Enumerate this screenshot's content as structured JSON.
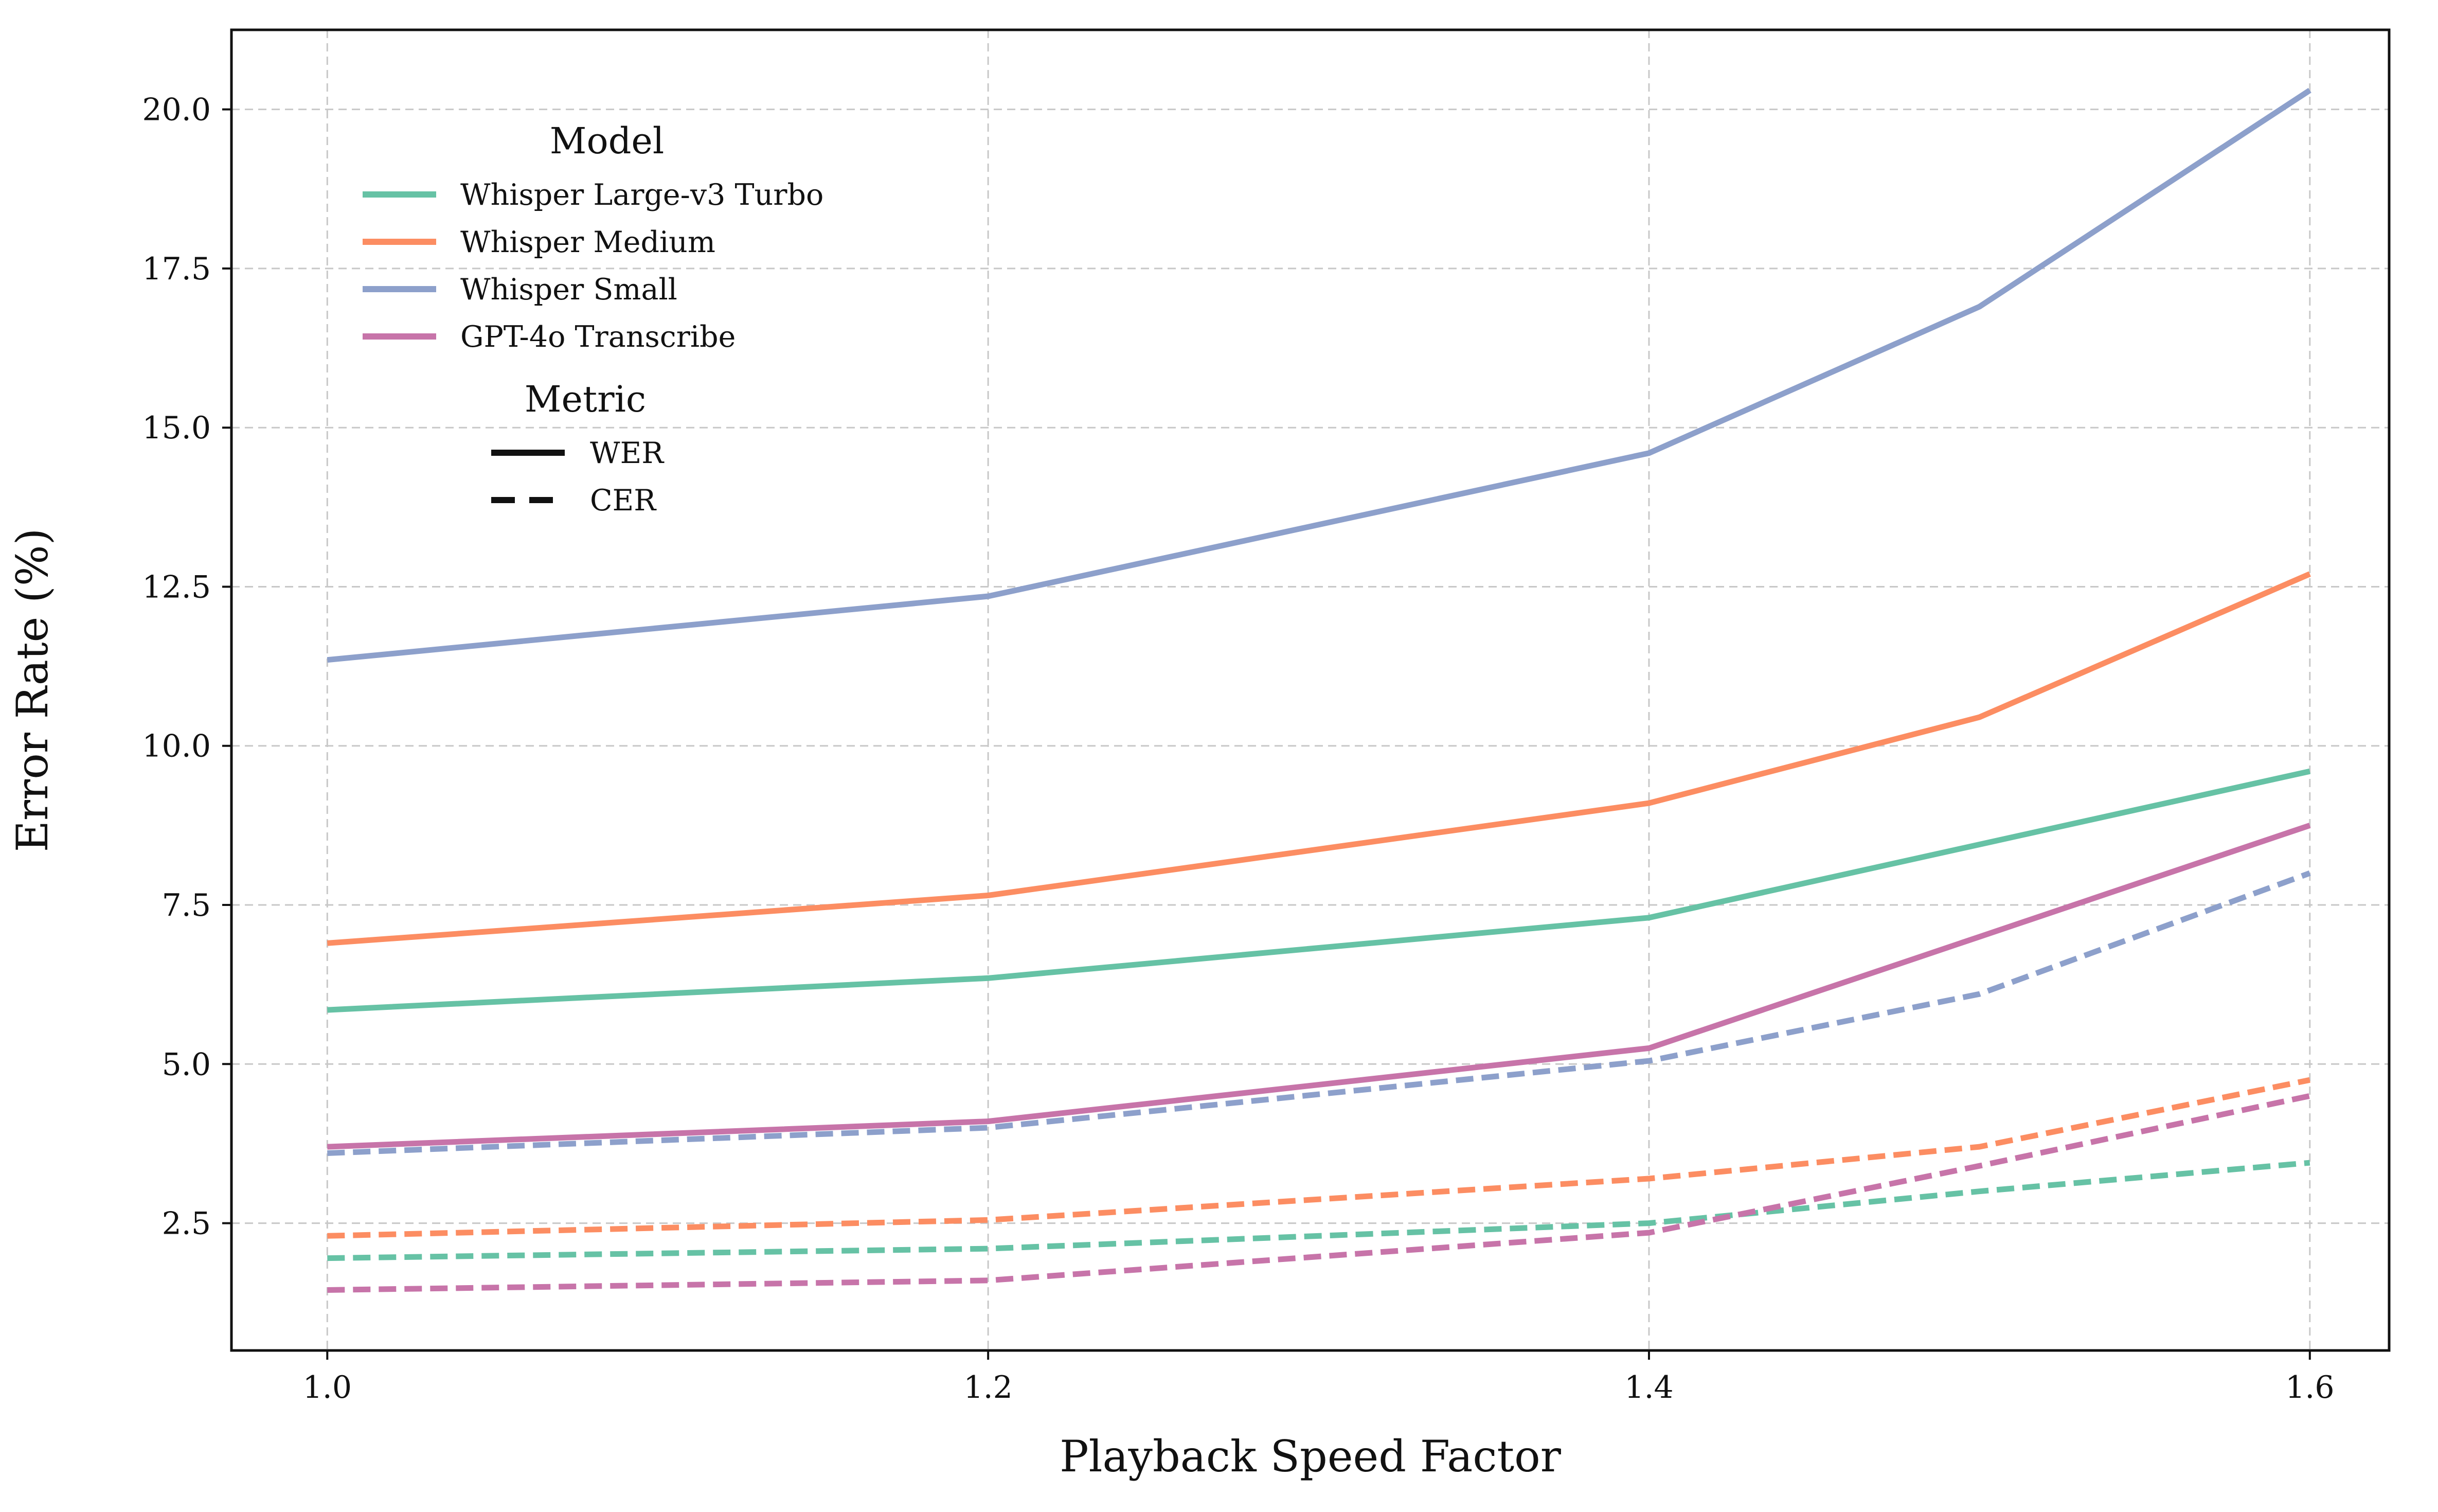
{
  "chart_data": {
    "type": "line",
    "xlabel": "Playback Speed Factor",
    "ylabel": "Error Rate (%)",
    "x_ticks": [
      "1.0",
      "1.2",
      "1.4",
      "1.6"
    ],
    "y_ticks": [
      "2.5",
      "5.0",
      "7.5",
      "10.0",
      "12.5",
      "15.0",
      "17.5",
      "20.0"
    ],
    "xlim": [
      0.971,
      1.624
    ],
    "ylim": [
      0.5,
      21.25
    ],
    "grid": true,
    "legend_placement": "upper-left",
    "legend_model_title": "Model",
    "legend_metric_title": "Metric",
    "metrics": [
      {
        "name": "WER",
        "dash": "solid"
      },
      {
        "name": "CER",
        "dash": "dashed"
      }
    ],
    "x": [
      1.0,
      1.2,
      1.4,
      1.5,
      1.6
    ],
    "series": [
      {
        "name": "Whisper Large-v3 Turbo",
        "color": "#66c2a5",
        "WER": [
          5.85,
          6.35,
          7.3,
          8.45,
          9.6
        ],
        "CER": [
          1.95,
          2.1,
          2.5,
          3.0,
          3.45
        ]
      },
      {
        "name": "Whisper Medium",
        "color": "#fc8d62",
        "WER": [
          6.9,
          7.65,
          9.1,
          10.45,
          12.7
        ],
        "CER": [
          2.3,
          2.55,
          3.2,
          3.7,
          4.75
        ]
      },
      {
        "name": "Whisper Small",
        "color": "#8da0cb",
        "WER": [
          11.35,
          12.35,
          14.6,
          16.9,
          20.3
        ],
        "CER": [
          3.6,
          4.0,
          5.05,
          6.1,
          8.0
        ]
      },
      {
        "name": "GPT-4o Transcribe",
        "color": "#c774a9",
        "WER": [
          3.7,
          4.1,
          5.25,
          7.0,
          8.75
        ],
        "CER": [
          1.45,
          1.6,
          2.35,
          3.4,
          4.5
        ]
      }
    ]
  }
}
